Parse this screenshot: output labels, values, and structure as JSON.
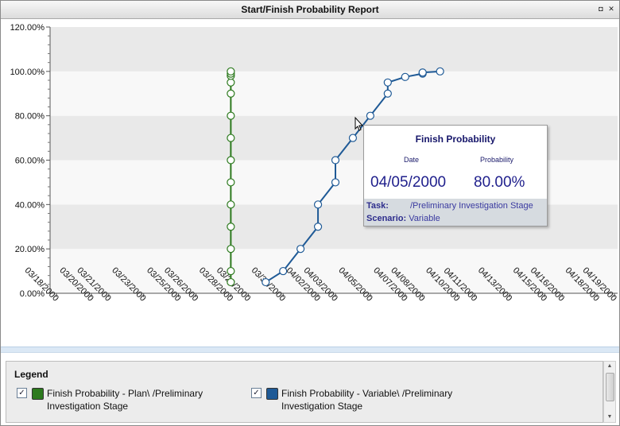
{
  "window": {
    "title": "Start/Finish Probability Report",
    "buttons": [
      {
        "name": "restore",
        "glyph": "◘"
      },
      {
        "name": "close",
        "glyph": "✕"
      }
    ]
  },
  "chart_data": {
    "type": "line",
    "y_ticks": [
      "0.00%",
      "20.00%",
      "40.00%",
      "60.00%",
      "80.00%",
      "100.00%",
      "120.00%"
    ],
    "ylim": [
      0,
      120
    ],
    "x_ticks": [
      "03/18/2000",
      "03/20/2000",
      "03/21/2000",
      "03/23/2000",
      "03/25/2000",
      "03/26/2000",
      "03/28/2000",
      "03/29/2000",
      "03/31/2000",
      "04/02/2000",
      "04/03/2000",
      "04/05/2000",
      "04/07/2000",
      "04/08/2000",
      "04/10/2000",
      "04/11/2000",
      "04/13/2000",
      "04/15/2000",
      "04/16/2000",
      "04/18/2000",
      "04/19/2000"
    ],
    "grid": "horizontal alternating bands",
    "series": [
      {
        "name": "Finish Probability - Plan\\ /Preliminary Investigation Stage",
        "color": "#2d7a1e",
        "points": [
          {
            "x": "03/28/2000",
            "y": 5
          },
          {
            "x": "03/28/2000",
            "y": 10
          },
          {
            "x": "03/28/2000",
            "y": 20
          },
          {
            "x": "03/28/2000",
            "y": 30
          },
          {
            "x": "03/28/2000",
            "y": 40
          },
          {
            "x": "03/28/2000",
            "y": 50
          },
          {
            "x": "03/28/2000",
            "y": 60
          },
          {
            "x": "03/28/2000",
            "y": 70
          },
          {
            "x": "03/28/2000",
            "y": 80
          },
          {
            "x": "03/28/2000",
            "y": 90
          },
          {
            "x": "03/28/2000",
            "y": 95
          },
          {
            "x": "03/28/2000",
            "y": 98
          },
          {
            "x": "03/28/2000",
            "y": 99
          },
          {
            "x": "03/28/2000",
            "y": 100
          }
        ]
      },
      {
        "name": "Finish Probability - Variable\\ /Preliminary Investigation Stage",
        "color": "#1f5a96",
        "points": [
          {
            "x": "03/30/2000",
            "y": 5
          },
          {
            "x": "03/31/2000",
            "y": 10
          },
          {
            "x": "04/01/2000",
            "y": 20
          },
          {
            "x": "04/02/2000",
            "y": 30
          },
          {
            "x": "04/02/2000",
            "y": 40
          },
          {
            "x": "04/03/2000",
            "y": 50
          },
          {
            "x": "04/03/2000",
            "y": 60
          },
          {
            "x": "04/04/2000",
            "y": 70
          },
          {
            "x": "04/05/2000",
            "y": 80
          },
          {
            "x": "04/06/2000",
            "y": 90
          },
          {
            "x": "04/06/2000",
            "y": 95
          },
          {
            "x": "04/07/2000",
            "y": 97.5
          },
          {
            "x": "04/08/2000",
            "y": 99
          },
          {
            "x": "04/08/2000",
            "y": 99.5
          },
          {
            "x": "04/09/2000",
            "y": 100
          }
        ]
      }
    ]
  },
  "tooltip": {
    "title": "Finish Probability",
    "date_header": "Date",
    "probability_header": "Probability",
    "date_value": "04/05/2000",
    "probability_value": "80.00%",
    "task_label": "Task:",
    "task_value": "/Preliminary Investigation Stage",
    "scenario_label": "Scenario:",
    "scenario_value": "Variable"
  },
  "legend": {
    "title": "Legend",
    "items": [
      {
        "label": "Finish Probability - Plan\\ /Preliminary Investigation Stage",
        "color": "#2d7a1e",
        "checked": "✓"
      },
      {
        "label": "Finish Probability - Variable\\ /Preliminary Investigation Stage",
        "color": "#1f5a96",
        "checked": "✓"
      }
    ]
  },
  "icons": {
    "cursor": "hand-pointer-icon"
  }
}
